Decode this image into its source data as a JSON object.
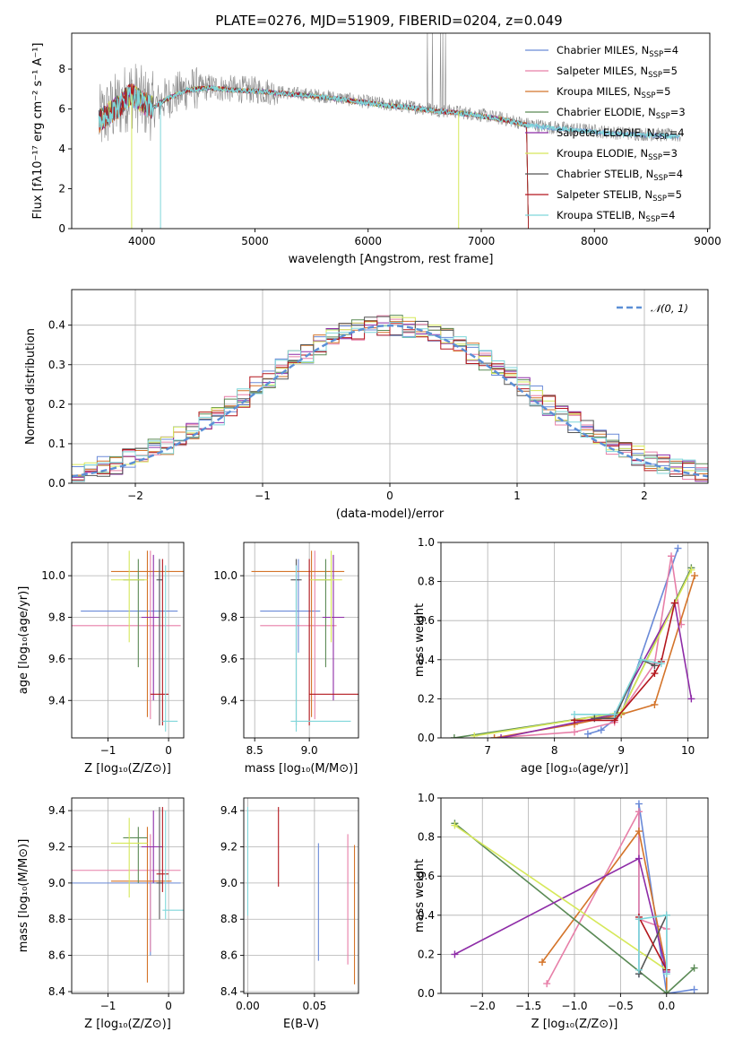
{
  "title": "PLATE=0276, MJD=51909, FIBERID=0204, z=0.049",
  "colors": {
    "chabrier_miles": "#6a8ad8",
    "salpeter_miles": "#e77fa8",
    "kroupa_miles": "#d4742a",
    "chabrier_elodie": "#5a8a55",
    "salpeter_elodie": "#8e2ca7",
    "kroupa_elodie": "#d6e85a",
    "chabrier_stelib": "#555555",
    "salpeter_stelib": "#b3161d",
    "kroupa_stelib": "#7fd6da",
    "data": "#888888",
    "gauss": "#5b8fd6"
  },
  "legend_labels": [
    {
      "text": "Chabrier MILES, N",
      "sub": "SSP",
      "tail": "=4"
    },
    {
      "text": "Salpeter MILES, N",
      "sub": "SSP",
      "tail": "=5"
    },
    {
      "text": "Kroupa MILES, N",
      "sub": "SSP",
      "tail": "=5"
    },
    {
      "text": "Chabrier ELODIE, N",
      "sub": "SSP",
      "tail": "=3"
    },
    {
      "text": "Salpeter ELODIE, N",
      "sub": "SSP",
      "tail": "=4"
    },
    {
      "text": "Kroupa ELODIE, N",
      "sub": "SSP",
      "tail": "=3"
    },
    {
      "text": "Chabrier STELIB, N",
      "sub": "SSP",
      "tail": "=4"
    },
    {
      "text": "Salpeter STELIB, N",
      "sub": "SSP",
      "tail": "=5"
    },
    {
      "text": "Kroupa STELIB, N",
      "sub": "SSP",
      "tail": "=4"
    }
  ],
  "chart_data": [
    {
      "type": "line",
      "xlabel": "wavelength [Angstrom, rest frame]",
      "ylabel": "Flux [fλ10⁻¹⁷ erg cm⁻² s⁻¹ A⁻¹]",
      "xlim": [
        3380,
        9020
      ],
      "ylim": [
        0,
        9.8
      ],
      "xticks": [
        "4000",
        "5000",
        "6000",
        "7000",
        "8000",
        "9000"
      ],
      "yticks": [
        "0",
        "2",
        "4",
        "6",
        "8"
      ],
      "spectrum_knots": {
        "x": [
          3620,
          3700,
          3800,
          3900,
          4000,
          4100,
          4200,
          4400,
          4600,
          4800,
          5000,
          5200,
          5400,
          5600,
          5800,
          6000,
          6200,
          6400,
          6600,
          6800,
          7000,
          7200,
          7400,
          7600,
          7800,
          8000,
          8200,
          8400,
          8600,
          8750
        ],
        "y": [
          5.4,
          5.8,
          6.2,
          6.8,
          6.4,
          6.1,
          6.5,
          7.0,
          7.1,
          7.0,
          6.95,
          6.85,
          6.75,
          6.65,
          6.5,
          6.35,
          6.2,
          6.1,
          5.95,
          5.85,
          5.7,
          5.5,
          5.25,
          5.1,
          5.0,
          4.9,
          4.8,
          4.75,
          4.7,
          4.65
        ]
      }
    },
    {
      "type": "line",
      "xlabel": "(data-model)/error",
      "ylabel": "Normed distribution",
      "xlim": [
        -2.5,
        2.5
      ],
      "ylim": [
        0,
        0.49
      ],
      "xticks": [
        "−2",
        "−1",
        "0",
        "1",
        "2"
      ],
      "yticks": [
        "0.0",
        "0.1",
        "0.2",
        "0.3",
        "0.4"
      ],
      "legend": "𝒩(0, 1)"
    },
    {
      "type": "scatter",
      "xlabel": "Z [log₁₀(Z/Z⊙)]",
      "ylabel": "age  [log₁₀(age/yr)]",
      "xlim": [
        -1.6,
        0.25
      ],
      "ylim": [
        9.22,
        10.16
      ],
      "xticks": [
        "−1",
        "0"
      ],
      "yticks": [
        "9.4",
        "9.6",
        "9.8",
        "10.0"
      ],
      "errorbars": [
        {
          "model": "chabrier_miles",
          "x": -0.15,
          "xerr": [
            1.3,
            0.3
          ],
          "y": 9.83,
          "yerr": [
            0.2,
            0.25
          ]
        },
        {
          "model": "salpeter_miles",
          "x": -0.3,
          "xerr": [
            1.3,
            0.5
          ],
          "y": 9.76,
          "yerr": [
            0.45,
            0.36
          ]
        },
        {
          "model": "kroupa_miles",
          "x": -0.35,
          "xerr": [
            0.6,
            0.9
          ],
          "y": 10.02,
          "yerr": [
            0.7,
            0.1
          ]
        },
        {
          "model": "chabrier_elodie",
          "x": -0.5,
          "xerr": [
            0.25,
            0.1
          ],
          "y": 9.98,
          "yerr": [
            0.42,
            0.1
          ]
        },
        {
          "model": "salpeter_elodie",
          "x": -0.25,
          "xerr": [
            0.2,
            0.1
          ],
          "y": 9.8,
          "yerr": [
            0.4,
            0.3
          ]
        },
        {
          "model": "kroupa_elodie",
          "x": -0.65,
          "xerr": [
            0.3,
            0.3
          ],
          "y": 9.98,
          "yerr": [
            0.3,
            0.14
          ]
        },
        {
          "model": "chabrier_stelib",
          "x": -0.15,
          "xerr": [
            0.05,
            0.05
          ],
          "y": 9.98,
          "yerr": [
            0.7,
            0.1
          ]
        },
        {
          "model": "salpeter_stelib",
          "x": -0.1,
          "xerr": [
            0.2,
            0.1
          ],
          "y": 9.43,
          "yerr": [
            0.15,
            0.65
          ]
        },
        {
          "model": "kroupa_stelib",
          "x": -0.05,
          "xerr": [
            0.05,
            0.2
          ],
          "y": 9.3,
          "yerr": [
            0.05,
            0.75
          ]
        }
      ]
    },
    {
      "type": "scatter",
      "xlabel": "mass [log₁₀(M/M⊙)]",
      "ylabel": "",
      "xlim": [
        8.4,
        9.45
      ],
      "ylim": [
        9.22,
        10.16
      ],
      "xticks": [
        "8.5",
        "9.0"
      ],
      "yticks": [
        "9.4",
        "9.6",
        "9.8",
        "10.0"
      ],
      "errorbars": [
        {
          "model": "chabrier_miles",
          "x": 8.9,
          "xerr": [
            0.35,
            0.2
          ],
          "y": 9.83,
          "yerr": [
            0.2,
            0.25
          ]
        },
        {
          "model": "salpeter_miles",
          "x": 9.05,
          "xerr": [
            0.5,
            0.2
          ],
          "y": 9.76,
          "yerr": [
            0.45,
            0.36
          ]
        },
        {
          "model": "kroupa_miles",
          "x": 9.02,
          "xerr": [
            0.55,
            0.3
          ],
          "y": 10.02,
          "yerr": [
            0.7,
            0.1
          ]
        },
        {
          "model": "chabrier_elodie",
          "x": 9.15,
          "xerr": [
            0.1,
            0.05
          ],
          "y": 9.98,
          "yerr": [
            0.42,
            0.1
          ]
        },
        {
          "model": "salpeter_elodie",
          "x": 9.22,
          "xerr": [
            0.1,
            0.1
          ],
          "y": 9.8,
          "yerr": [
            0.4,
            0.3
          ]
        },
        {
          "model": "kroupa_elodie",
          "x": 9.2,
          "xerr": [
            0.2,
            0.1
          ],
          "y": 9.98,
          "yerr": [
            0.3,
            0.14
          ]
        },
        {
          "model": "chabrier_stelib",
          "x": 8.88,
          "xerr": [
            0.05,
            0.05
          ],
          "y": 9.98,
          "yerr": [
            0.7,
            0.1
          ]
        },
        {
          "model": "salpeter_stelib",
          "x": 9.0,
          "xerr": [
            0.0,
            0.45
          ],
          "y": 9.43,
          "yerr": [
            0.15,
            0.65
          ]
        },
        {
          "model": "kroupa_stelib",
          "x": 8.88,
          "xerr": [
            0.05,
            0.5
          ],
          "y": 9.3,
          "yerr": [
            0.05,
            0.75
          ]
        }
      ]
    },
    {
      "type": "line",
      "xlabel": "age  [log₁₀(age/yr)]",
      "ylabel": "mass weight",
      "xlim": [
        6.3,
        10.3
      ],
      "ylim": [
        0,
        1.0
      ],
      "xticks": [
        "7",
        "8",
        "9",
        "10"
      ],
      "yticks": [
        "0.0",
        "0.2",
        "0.4",
        "0.6",
        "0.8",
        "1.0"
      ],
      "series": [
        {
          "model": "chabrier_miles",
          "x": [
            8.5,
            8.7,
            9.0,
            9.85
          ],
          "y": [
            0.02,
            0.04,
            0.12,
            0.97
          ]
        },
        {
          "model": "salpeter_miles",
          "x": [
            7.1,
            8.3,
            8.9,
            9.5,
            9.75,
            9.9
          ],
          "y": [
            0.0,
            0.03,
            0.08,
            0.38,
            0.93,
            0.58
          ]
        },
        {
          "model": "kroupa_miles",
          "x": [
            7.1,
            8.3,
            9.0,
            9.5,
            10.1
          ],
          "y": [
            0.0,
            0.07,
            0.12,
            0.17,
            0.83
          ]
        },
        {
          "model": "chabrier_elodie",
          "x": [
            6.5,
            9.0,
            10.05
          ],
          "y": [
            0.0,
            0.13,
            0.87
          ]
        },
        {
          "model": "salpeter_elodie",
          "x": [
            7.2,
            8.9,
            9.8,
            10.05
          ],
          "y": [
            0.0,
            0.12,
            0.69,
            0.2
          ]
        },
        {
          "model": "kroupa_elodie",
          "x": [
            6.8,
            9.0,
            10.05
          ],
          "y": [
            0.01,
            0.13,
            0.86
          ]
        },
        {
          "model": "chabrier_stelib",
          "x": [
            8.6,
            8.9,
            9.3,
            9.5
          ],
          "y": [
            0.1,
            0.1,
            0.4,
            0.37
          ]
        },
        {
          "model": "salpeter_stelib",
          "x": [
            8.3,
            8.9,
            9.5,
            9.6,
            9.8
          ],
          "y": [
            0.09,
            0.09,
            0.33,
            0.39,
            0.69
          ]
        },
        {
          "model": "kroupa_stelib",
          "x": [
            8.3,
            8.9,
            9.3,
            9.6
          ],
          "y": [
            0.12,
            0.12,
            0.4,
            0.38
          ]
        }
      ]
    },
    {
      "type": "scatter",
      "xlabel": "Z [log₁₀(Z/Z⊙)]",
      "ylabel": "mass [log₁₀(M/M⊙)]",
      "xlim": [
        -1.6,
        0.25
      ],
      "ylim": [
        8.39,
        9.47
      ],
      "xticks": [
        "−1",
        "0"
      ],
      "yticks": [
        "8.4",
        "8.6",
        "8.8",
        "9.0",
        "9.2",
        "9.4"
      ],
      "errorbars": [
        {
          "model": "chabrier_miles",
          "x": -0.3,
          "xerr": [
            1.3,
            0.5
          ],
          "y": 9.0,
          "yerr": [
            0.4,
            0.2
          ]
        },
        {
          "model": "salpeter_miles",
          "x": -0.3,
          "xerr": [
            1.3,
            0.5
          ],
          "y": 9.07,
          "yerr": [
            0.45,
            0.2
          ]
        },
        {
          "model": "kroupa_miles",
          "x": -0.35,
          "xerr": [
            0.6,
            0.4
          ],
          "y": 9.01,
          "yerr": [
            0.56,
            0.3
          ]
        },
        {
          "model": "chabrier_elodie",
          "x": -0.5,
          "xerr": [
            0.25,
            0.15
          ],
          "y": 9.25,
          "yerr": [
            0.25,
            0.06
          ]
        },
        {
          "model": "salpeter_elodie",
          "x": -0.25,
          "xerr": [
            0.2,
            0.15
          ],
          "y": 9.2,
          "yerr": [
            0.2,
            0.2
          ]
        },
        {
          "model": "kroupa_elodie",
          "x": -0.65,
          "xerr": [
            0.3,
            0.3
          ],
          "y": 9.22,
          "yerr": [
            0.3,
            0.14
          ]
        },
        {
          "model": "chabrier_stelib",
          "x": -0.15,
          "xerr": [
            0.05,
            0.05
          ],
          "y": 9.0,
          "yerr": [
            0.2,
            0.42
          ]
        },
        {
          "model": "salpeter_stelib",
          "x": -0.1,
          "xerr": [
            0.1,
            0.1
          ],
          "y": 9.05,
          "yerr": [
            0.1,
            0.37
          ]
        },
        {
          "model": "kroupa_stelib",
          "x": -0.05,
          "xerr": [
            0.05,
            0.3
          ],
          "y": 8.85,
          "yerr": [
            0.05,
            0.55
          ]
        }
      ]
    },
    {
      "type": "scatter",
      "xlabel": "E(B-V)",
      "ylabel": "",
      "xlim": [
        -0.003,
        0.083
      ],
      "ylim": [
        8.39,
        9.47
      ],
      "xticks": [
        "0.00",
        "0.05"
      ],
      "yticks": [
        "8.4",
        "8.6",
        "8.8",
        "9.0",
        "9.2",
        "9.4"
      ],
      "errorbars": [
        {
          "model": "chabrier_miles",
          "x": 0.053,
          "y": 8.9,
          "yerr": [
            0.33,
            0.32
          ]
        },
        {
          "model": "salpeter_miles",
          "x": 0.075,
          "y": 8.9,
          "yerr": [
            0.35,
            0.37
          ]
        },
        {
          "model": "kroupa_miles",
          "x": 0.08,
          "y": 8.8,
          "yerr": [
            0.36,
            0.41
          ]
        },
        {
          "model": "salpeter_stelib",
          "x": 0.023,
          "y": 9.2,
          "yerr": [
            0.22,
            0.22
          ]
        },
        {
          "model": "kroupa_stelib",
          "x": 0.0,
          "y": 9.1,
          "yerr": [
            0.28,
            0.32
          ]
        }
      ]
    },
    {
      "type": "line",
      "xlabel": "Z [log₁₀(Z/Z⊙)]",
      "ylabel": "mass weight",
      "xlim": [
        -2.45,
        0.45
      ],
      "ylim": [
        0,
        1.0
      ],
      "xticks": [
        "−2.0",
        "−1.5",
        "−1.0",
        "−0.5",
        "0.0"
      ],
      "yticks": [
        "0.0",
        "0.2",
        "0.4",
        "0.6",
        "0.8",
        "1.0"
      ],
      "series": [
        {
          "model": "chabrier_miles",
          "x": [
            0.3,
            0.0,
            -0.3,
            -0.3
          ],
          "y": [
            0.02,
            0.0,
            0.97,
            0.1
          ]
        },
        {
          "model": "salpeter_miles",
          "x": [
            -1.3,
            -0.3,
            -0.3,
            0.0
          ],
          "y": [
            0.05,
            0.93,
            0.38,
            0.33
          ]
        },
        {
          "model": "kroupa_miles",
          "x": [
            -1.35,
            -0.3,
            0.0,
            0.0
          ],
          "y": [
            0.16,
            0.83,
            0.12,
            0.0
          ]
        },
        {
          "model": "chabrier_elodie",
          "x": [
            -2.3,
            0.0,
            0.3
          ],
          "y": [
            0.87,
            0.0,
            0.13
          ]
        },
        {
          "model": "salpeter_elodie",
          "x": [
            -2.3,
            -0.3,
            0.0
          ],
          "y": [
            0.2,
            0.69,
            0.11
          ]
        },
        {
          "model": "kroupa_elodie",
          "x": [
            -2.3,
            0.0
          ],
          "y": [
            0.86,
            0.12
          ]
        },
        {
          "model": "chabrier_stelib",
          "x": [
            -0.3,
            0.0,
            0.0
          ],
          "y": [
            0.1,
            0.4,
            0.12
          ]
        },
        {
          "model": "salpeter_stelib",
          "x": [
            -0.3,
            0.0
          ],
          "y": [
            0.39,
            0.12
          ]
        },
        {
          "model": "kroupa_stelib",
          "x": [
            -0.3,
            -0.3,
            0.0,
            0.0
          ],
          "y": [
            0.12,
            0.38,
            0.4,
            0.1
          ]
        }
      ]
    }
  ]
}
